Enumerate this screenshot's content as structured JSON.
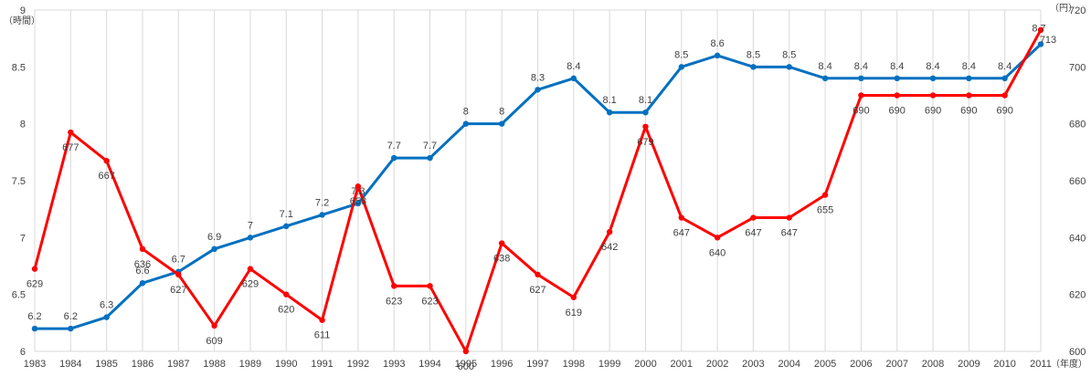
{
  "chart_data": {
    "type": "line",
    "title": "",
    "categories": [
      "1983",
      "1984",
      "1985",
      "1986",
      "1987",
      "1988",
      "1989",
      "1990",
      "1991",
      "1992",
      "1993",
      "1994",
      "1995",
      "1996",
      "1997",
      "1998",
      "1999",
      "2000",
      "2001",
      "2002",
      "2003",
      "2004",
      "2005",
      "2006",
      "2007",
      "2008",
      "2009",
      "2010",
      "2011"
    ],
    "xlabel": "（年度）",
    "y_left": {
      "label": "（時間）",
      "ylim": [
        6,
        9
      ],
      "ticks": [
        "6",
        "6.5",
        "7",
        "7.5",
        "8",
        "8.5",
        "9"
      ]
    },
    "y_right": {
      "label": "（円）",
      "ylim": [
        600,
        720
      ],
      "ticks": [
        "600",
        "620",
        "640",
        "660",
        "680",
        "700",
        "720"
      ]
    },
    "grid": "vertical",
    "series": [
      {
        "axis": "left",
        "color": "#0070c0",
        "values": [
          6.2,
          6.2,
          6.3,
          6.6,
          6.7,
          6.9,
          7,
          7.1,
          7.2,
          7.3,
          7.7,
          7.7,
          8,
          8,
          8.3,
          8.4,
          8.1,
          8.1,
          8.5,
          8.6,
          8.5,
          8.5,
          8.4,
          8.4,
          8.4,
          8.4,
          8.4,
          8.4,
          8.7
        ],
        "labels": [
          "6.2",
          "6.2",
          "6.3",
          "6.6",
          "6.7",
          "6.9",
          "7",
          "7.1",
          "7.2",
          "7.3",
          "7.7",
          "7.7",
          "8",
          "8",
          "8.3",
          "8.4",
          "8.1",
          "8.1",
          "8.5",
          "8.6",
          "8.5",
          "8.5",
          "8.4",
          "8.4",
          "8.4",
          "8.4",
          "8.4",
          "8.4",
          "8.7"
        ]
      },
      {
        "axis": "right",
        "color": "#ff0000",
        "values": [
          629,
          677,
          667,
          636,
          627,
          609,
          629,
          620,
          611,
          658,
          623,
          623,
          600,
          638,
          627,
          619,
          642,
          679,
          647,
          640,
          647,
          647,
          655,
          690,
          690,
          690,
          690,
          690,
          713
        ],
        "labels": [
          "629",
          "677",
          "667",
          "636",
          "627",
          "609",
          "629",
          "620",
          "611",
          "658",
          "623",
          "623",
          "600",
          "638",
          "627",
          "619",
          "642",
          "679",
          "647",
          "640",
          "647",
          "647",
          "655",
          "690",
          "690",
          "690",
          "690",
          "690",
          "713"
        ]
      }
    ]
  }
}
